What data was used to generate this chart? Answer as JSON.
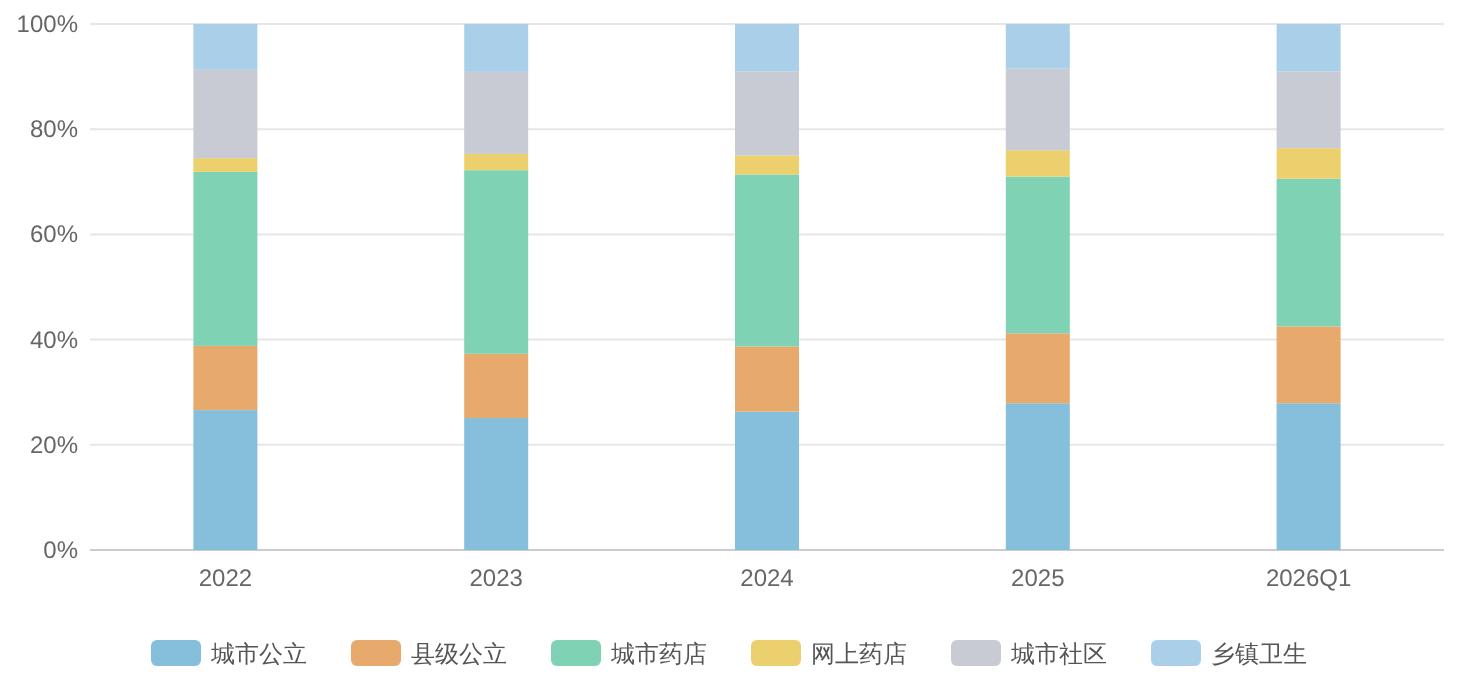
{
  "chart_data": {
    "type": "bar",
    "stacked": true,
    "categories": [
      "2022",
      "2023",
      "2024",
      "2025",
      "2026Q1"
    ],
    "series": [
      {
        "name": "城市公立",
        "color": "#85bfdc",
        "values": [
          26.6,
          25.1,
          26.3,
          27.9,
          27.9
        ]
      },
      {
        "name": "县级公立",
        "color": "#e8a96c",
        "values": [
          12.2,
          12.2,
          12.4,
          13.3,
          14.6
        ]
      },
      {
        "name": "城市药店",
        "color": "#7fd3b4",
        "values": [
          33.1,
          34.9,
          32.7,
          29.8,
          28.1
        ]
      },
      {
        "name": "网上药店",
        "color": "#ecd06e",
        "values": [
          2.6,
          3.1,
          3.6,
          5.0,
          5.8
        ]
      },
      {
        "name": "城市社区",
        "color": "#c8cbd3",
        "values": [
          16.8,
          15.6,
          16.0,
          15.5,
          14.6
        ]
      },
      {
        "name": "乡镇卫生",
        "color": "#a9d0e8",
        "values": [
          8.7,
          9.1,
          9.0,
          8.5,
          9.0
        ]
      }
    ],
    "ylim": [
      0,
      100
    ],
    "yticks": [
      {
        "value": 0,
        "label": "0%"
      },
      {
        "value": 20,
        "label": "20%"
      },
      {
        "value": 40,
        "label": "40%"
      },
      {
        "value": 60,
        "label": "60%"
      },
      {
        "value": 80,
        "label": "80%"
      },
      {
        "value": 100,
        "label": "100%"
      }
    ],
    "grid": "y",
    "legend": "bottom"
  }
}
